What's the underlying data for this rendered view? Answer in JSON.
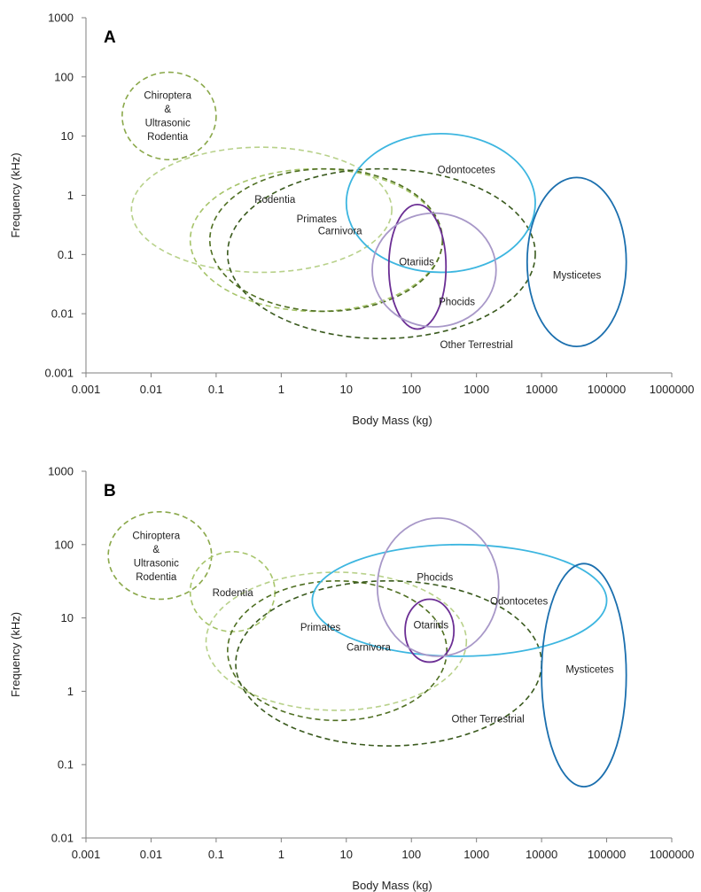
{
  "chart_data": [
    {
      "type": "ellipse-range",
      "panel_label": "A",
      "xlabel": "Body Mass (kg)",
      "ylabel": "Frequency (kHz)",
      "xscale": "log",
      "yscale": "log",
      "xlim": [
        0.001,
        1000000
      ],
      "ylim": [
        0.001,
        1000
      ],
      "x_ticks": [
        "0.001",
        "0.01",
        "0.1",
        "1",
        "10",
        "100",
        "1000",
        "10000",
        "100000",
        "1000000"
      ],
      "y_ticks": [
        "0.001",
        "0.01",
        "0.1",
        "1",
        "10",
        "100",
        "1000"
      ],
      "grid": false,
      "groups": [
        {
          "name": "Chiroptera & Ultrasonic Rodentia",
          "label_lines": [
            "Chiroptera",
            "&",
            "Ultrasonic",
            "Rodentia"
          ],
          "mass_range": [
            0.0036,
            0.1
          ],
          "freq_range": [
            4,
            120
          ],
          "color": "#8aa84a",
          "dashed": true,
          "label_mass": 0.018,
          "label_freq": 22
        },
        {
          "name": "Rodentia",
          "label_lines": [
            "Rodentia"
          ],
          "mass_range": [
            0.005,
            50
          ],
          "freq_range": [
            0.05,
            6.5
          ],
          "color": "#b8d18a",
          "dashed": true,
          "label_mass": 0.8,
          "label_freq": 0.85
        },
        {
          "name": "Primates",
          "label_lines": [
            "Primates"
          ],
          "mass_range": [
            0.04,
            300
          ],
          "freq_range": [
            0.011,
            2.8
          ],
          "color": "#a6c46a",
          "dashed": true,
          "label_mass": 3.5,
          "label_freq": 0.4
        },
        {
          "name": "Carnivora",
          "label_lines": [
            "Carnivora"
          ],
          "mass_range": [
            0.08,
            300
          ],
          "freq_range": [
            0.011,
            2.8
          ],
          "color": "#4f6f22",
          "dashed": true,
          "label_mass": 8,
          "label_freq": 0.25
        },
        {
          "name": "Other Terrestrial",
          "label_lines": [
            "Other Terrestrial"
          ],
          "mass_range": [
            0.15,
            8000
          ],
          "freq_range": [
            0.0038,
            2.8
          ],
          "color": "#3a5a1e",
          "dashed": true,
          "label_mass": 1000,
          "label_freq": 0.003
        },
        {
          "name": "Odontocetes",
          "label_lines": [
            "Odontocetes"
          ],
          "mass_range": [
            10,
            8000
          ],
          "freq_range": [
            0.05,
            11
          ],
          "color": "#3db6e0",
          "dashed": false,
          "label_mass": 700,
          "label_freq": 2.7
        },
        {
          "name": "Otariids",
          "label_lines": [
            "Otariids"
          ],
          "mass_range": [
            45,
            340
          ],
          "freq_range": [
            0.0055,
            0.7
          ],
          "color": "#6b2e94",
          "dashed": false,
          "label_mass": 120,
          "label_freq": 0.075
        },
        {
          "name": "Phocids",
          "label_lines": [
            "Phocids"
          ],
          "mass_range": [
            25,
            2000
          ],
          "freq_range": [
            0.006,
            0.5
          ],
          "color": "#a898c8",
          "dashed": false,
          "label_mass": 500,
          "label_freq": 0.016
        },
        {
          "name": "Mysticetes",
          "label_lines": [
            "Mysticetes"
          ],
          "mass_range": [
            6000,
            200000
          ],
          "freq_range": [
            0.0028,
            2
          ],
          "color": "#1b6fae",
          "dashed": false,
          "label_mass": 35000,
          "label_freq": 0.045
        }
      ]
    },
    {
      "type": "ellipse-range",
      "panel_label": "B",
      "xlabel": "Body Mass (kg)",
      "ylabel": "Frequency (kHz)",
      "xscale": "log",
      "yscale": "log",
      "xlim": [
        0.001,
        1000000
      ],
      "ylim": [
        0.01,
        1000
      ],
      "x_ticks": [
        "0.001",
        "0.01",
        "0.1",
        "1",
        "10",
        "100",
        "1000",
        "10000",
        "100000",
        "1000000"
      ],
      "y_ticks": [
        "0.01",
        "0.1",
        "1",
        "10",
        "100",
        "1000"
      ],
      "grid": false,
      "groups": [
        {
          "name": "Chiroptera & Ultrasonic Rodentia",
          "label_lines": [
            "Chiroptera",
            "&",
            "Ultrasonic",
            "Rodentia"
          ],
          "mass_range": [
            0.0022,
            0.085
          ],
          "freq_range": [
            18,
            280
          ],
          "color": "#8aa84a",
          "dashed": true,
          "label_mass": 0.012,
          "label_freq": 70
        },
        {
          "name": "Rodentia",
          "label_lines": [
            "Rodentia"
          ],
          "mass_range": [
            0.04,
            0.8
          ],
          "freq_range": [
            6.5,
            80
          ],
          "color": "#a6c46a",
          "dashed": true,
          "label_mass": 0.18,
          "label_freq": 22
        },
        {
          "name": "Primates",
          "label_lines": [
            "Primates"
          ],
          "mass_range": [
            0.07,
            700
          ],
          "freq_range": [
            0.55,
            42
          ],
          "color": "#b8d18a",
          "dashed": true,
          "label_mass": 4,
          "label_freq": 7.5
        },
        {
          "name": "Carnivora",
          "label_lines": [
            "Carnivora"
          ],
          "mass_range": [
            0.15,
            350
          ],
          "freq_range": [
            0.4,
            32
          ],
          "color": "#4f6f22",
          "dashed": true,
          "label_mass": 22,
          "label_freq": 4
        },
        {
          "name": "Other Terrestrial",
          "label_lines": [
            "Other Terrestrial"
          ],
          "mass_range": [
            0.2,
            10000
          ],
          "freq_range": [
            0.18,
            32
          ],
          "color": "#3a5a1e",
          "dashed": true,
          "label_mass": 1500,
          "label_freq": 0.42
        },
        {
          "name": "Odontocetes",
          "label_lines": [
            "Odontocetes"
          ],
          "mass_range": [
            3,
            100000
          ],
          "freq_range": [
            3,
            100
          ],
          "color": "#3db6e0",
          "dashed": false,
          "label_mass": 4500,
          "label_freq": 17
        },
        {
          "name": "Otariids",
          "label_lines": [
            "Otariids"
          ],
          "mass_range": [
            80,
            450
          ],
          "freq_range": [
            2.5,
            18
          ],
          "color": "#6b2e94",
          "dashed": false,
          "label_mass": 200,
          "label_freq": 8
        },
        {
          "name": "Phocids",
          "label_lines": [
            "Phocids"
          ],
          "mass_range": [
            30,
            2200
          ],
          "freq_range": [
            3,
            230
          ],
          "color": "#a898c8",
          "dashed": false,
          "label_mass": 230,
          "label_freq": 36
        },
        {
          "name": "Mysticetes",
          "label_lines": [
            "Mysticetes"
          ],
          "mass_range": [
            10000,
            200000
          ],
          "freq_range": [
            0.05,
            55
          ],
          "color": "#1b6fae",
          "dashed": false,
          "label_mass": 55000,
          "label_freq": 2
        }
      ]
    }
  ]
}
